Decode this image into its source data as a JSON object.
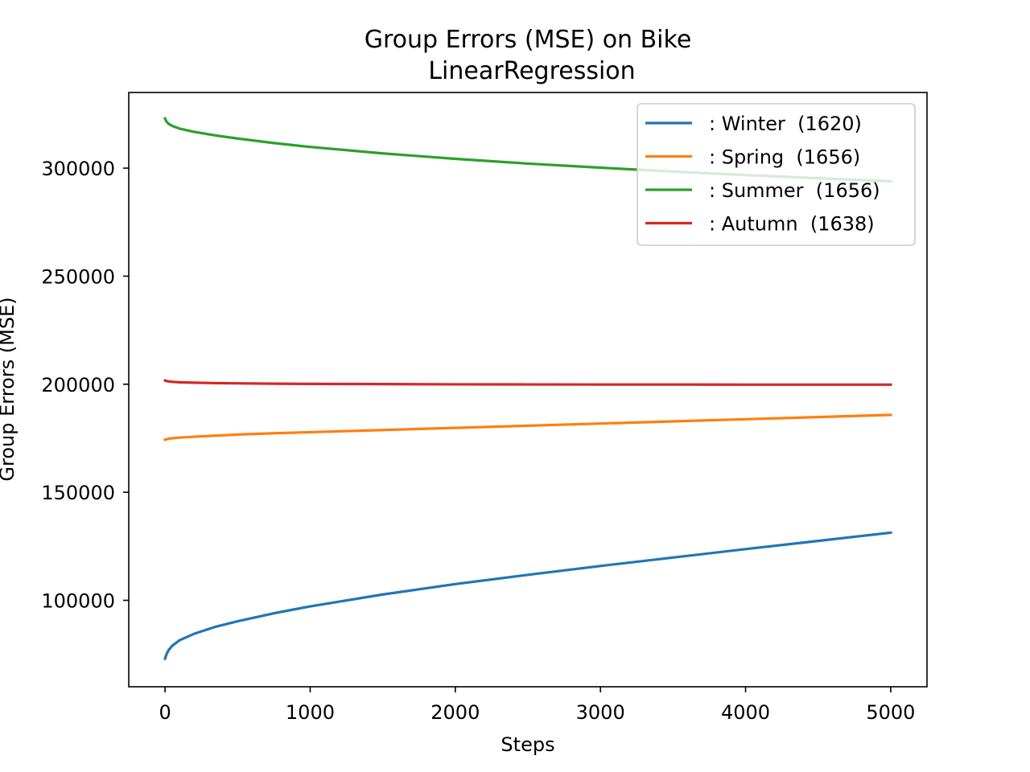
{
  "chart_data": {
    "type": "line",
    "title": "Group Errors (MSE) on Bike",
    "subtitle": "LinearRegression",
    "xlabel": "Steps",
    "ylabel": "Group Errors (MSE)",
    "xlim": [
      -250,
      5250
    ],
    "ylim": [
      60000,
      335000
    ],
    "xticks": [
      0,
      1000,
      2000,
      3000,
      4000,
      5000
    ],
    "yticks": [
      100000,
      150000,
      200000,
      250000,
      300000
    ],
    "xtick_labels": [
      "0",
      "1000",
      "2000",
      "3000",
      "4000",
      "5000"
    ],
    "ytick_labels": [
      "100000",
      "150000",
      "200000",
      "250000",
      "300000"
    ],
    "grid": false,
    "legend_position": "top-right",
    "x": [
      0,
      10,
      25,
      50,
      100,
      200,
      350,
      500,
      750,
      1000,
      1500,
      2000,
      2500,
      3000,
      3500,
      4000,
      4500,
      5000
    ],
    "series": [
      {
        "name": ": Winter  (1620)",
        "color": "#1f77b4",
        "values": [
          73000,
          75000,
          77000,
          79000,
          81500,
          84500,
          87800,
          90300,
          94000,
          97200,
          102700,
          107500,
          111800,
          115900,
          119800,
          123700,
          127500,
          131300
        ]
      },
      {
        "name": ": Spring  (1656)",
        "color": "#ff7f0e",
        "values": [
          174300,
          174500,
          174800,
          175000,
          175300,
          175700,
          176200,
          176700,
          177300,
          177800,
          178800,
          179800,
          180800,
          181800,
          182800,
          183800,
          184800,
          185800
        ]
      },
      {
        "name": ": Summer  (1656)",
        "color": "#2ca02c",
        "values": [
          323000,
          321500,
          320500,
          319500,
          318300,
          316800,
          315100,
          313700,
          311600,
          309800,
          306800,
          304300,
          302100,
          300200,
          298400,
          296800,
          295300,
          293900
        ]
      },
      {
        "name": ": Autumn  (1638)",
        "color": "#d62728",
        "values": [
          201700,
          201500,
          201300,
          201100,
          200900,
          200700,
          200500,
          200400,
          200250,
          200150,
          200050,
          199950,
          199900,
          199850,
          199850,
          199800,
          199800,
          199800
        ]
      }
    ]
  }
}
